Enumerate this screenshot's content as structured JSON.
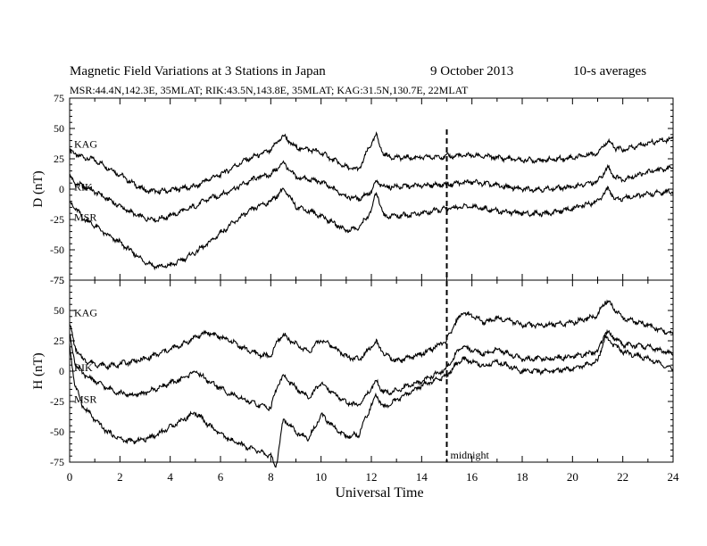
{
  "title": {
    "main": "Magnetic Field Variations at 3 Stations in Japan",
    "date": "9   October 2013",
    "averaging": "10-s averages"
  },
  "subtitle": "MSR:44.4N,142.3E, 35MLAT;  RIK:43.5N,143.8E, 35MLAT;  KAG:31.5N,130.7E, 22MLAT",
  "x_axis": {
    "label": "Universal Time",
    "range": [
      0,
      24
    ],
    "ticks": [
      0,
      2,
      4,
      6,
      8,
      10,
      12,
      14,
      16,
      18,
      20,
      22,
      24
    ]
  },
  "midnight_marker": {
    "x": 15,
    "label": "midnight"
  },
  "chart_data": [
    {
      "type": "line",
      "ylabel": "D (nT)",
      "ylim": [
        -75,
        75
      ],
      "yticks": [
        -75,
        -50,
        -25,
        0,
        25,
        50,
        75
      ],
      "series": [
        {
          "name": "KAG",
          "label_y": 37,
          "points": [
            [
              0,
              32
            ],
            [
              0.3,
              28
            ],
            [
              0.6,
              26
            ],
            [
              1,
              24
            ],
            [
              1.5,
              18
            ],
            [
              2,
              12
            ],
            [
              2.5,
              5
            ],
            [
              3,
              -1
            ],
            [
              3.5,
              -2
            ],
            [
              4,
              -1
            ],
            [
              4.5,
              1
            ],
            [
              5,
              2
            ],
            [
              5.5,
              8
            ],
            [
              6,
              12
            ],
            [
              6.5,
              18
            ],
            [
              7,
              24
            ],
            [
              7.5,
              28
            ],
            [
              8,
              32
            ],
            [
              8.3,
              40
            ],
            [
              8.5,
              44
            ],
            [
              8.8,
              38
            ],
            [
              9,
              34
            ],
            [
              9.5,
              33
            ],
            [
              10,
              30
            ],
            [
              10.5,
              24
            ],
            [
              11,
              18
            ],
            [
              11.5,
              16
            ],
            [
              12,
              38
            ],
            [
              12.2,
              44
            ],
            [
              12.5,
              28
            ],
            [
              13,
              26
            ],
            [
              14,
              26
            ],
            [
              15,
              27
            ],
            [
              16,
              28
            ],
            [
              17,
              26
            ],
            [
              18,
              24
            ],
            [
              19,
              24
            ],
            [
              20,
              26
            ],
            [
              21,
              30
            ],
            [
              21.4,
              40
            ],
            [
              21.7,
              34
            ],
            [
              22,
              32
            ],
            [
              23,
              38
            ],
            [
              24,
              42
            ]
          ]
        },
        {
          "name": "RIK",
          "label_y": 2,
          "points": [
            [
              0,
              10
            ],
            [
              0.3,
              4
            ],
            [
              0.6,
              2
            ],
            [
              1,
              -2
            ],
            [
              1.5,
              -8
            ],
            [
              2,
              -14
            ],
            [
              2.5,
              -20
            ],
            [
              3,
              -24
            ],
            [
              3.5,
              -25
            ],
            [
              4,
              -22
            ],
            [
              4.5,
              -18
            ],
            [
              5,
              -14
            ],
            [
              5.5,
              -8
            ],
            [
              6,
              -5
            ],
            [
              6.5,
              0
            ],
            [
              7,
              5
            ],
            [
              7.5,
              10
            ],
            [
              8,
              12
            ],
            [
              8.3,
              18
            ],
            [
              8.5,
              22
            ],
            [
              8.8,
              14
            ],
            [
              9,
              10
            ],
            [
              9.5,
              8
            ],
            [
              10,
              6
            ],
            [
              10.5,
              0
            ],
            [
              11,
              -6
            ],
            [
              11.5,
              -8
            ],
            [
              12,
              -2
            ],
            [
              12.2,
              6
            ],
            [
              12.5,
              2
            ],
            [
              13,
              2
            ],
            [
              14,
              3
            ],
            [
              15,
              4
            ],
            [
              16,
              6
            ],
            [
              17,
              3
            ],
            [
              18,
              0
            ],
            [
              19,
              0
            ],
            [
              20,
              2
            ],
            [
              21,
              6
            ],
            [
              21.4,
              18
            ],
            [
              21.7,
              10
            ],
            [
              22,
              8
            ],
            [
              23,
              14
            ],
            [
              24,
              18
            ]
          ]
        },
        {
          "name": "MSR",
          "label_y": -23,
          "points": [
            [
              0,
              -10
            ],
            [
              0.3,
              -18
            ],
            [
              0.6,
              -25
            ],
            [
              1,
              -30
            ],
            [
              1.5,
              -38
            ],
            [
              2,
              -44
            ],
            [
              2.5,
              -52
            ],
            [
              3,
              -60
            ],
            [
              3.5,
              -64
            ],
            [
              4,
              -63
            ],
            [
              4.5,
              -58
            ],
            [
              5,
              -52
            ],
            [
              5.5,
              -45
            ],
            [
              6,
              -36
            ],
            [
              6.5,
              -28
            ],
            [
              7,
              -20
            ],
            [
              7.5,
              -14
            ],
            [
              8,
              -10
            ],
            [
              8.3,
              -4
            ],
            [
              8.5,
              0
            ],
            [
              8.8,
              -8
            ],
            [
              9,
              -14
            ],
            [
              9.5,
              -18
            ],
            [
              10,
              -22
            ],
            [
              10.5,
              -28
            ],
            [
              11,
              -34
            ],
            [
              11.5,
              -32
            ],
            [
              12,
              -18
            ],
            [
              12.2,
              -2
            ],
            [
              12.5,
              -22
            ],
            [
              13,
              -22
            ],
            [
              14,
              -20
            ],
            [
              15,
              -16
            ],
            [
              16,
              -14
            ],
            [
              17,
              -18
            ],
            [
              18,
              -20
            ],
            [
              19,
              -20
            ],
            [
              20,
              -16
            ],
            [
              21,
              -10
            ],
            [
              21.4,
              0
            ],
            [
              21.7,
              -8
            ],
            [
              22,
              -8
            ],
            [
              23,
              -4
            ],
            [
              24,
              -2
            ]
          ]
        }
      ]
    },
    {
      "type": "line",
      "ylabel": "H (nT)",
      "ylim": [
        -75,
        75
      ],
      "yticks": [
        -75,
        -50,
        -25,
        0,
        25,
        50,
        75
      ],
      "series": [
        {
          "name": "KAG",
          "label_y": 48,
          "points": [
            [
              0,
              40
            ],
            [
              0.2,
              20
            ],
            [
              0.5,
              10
            ],
            [
              1,
              6
            ],
            [
              1.5,
              4
            ],
            [
              2,
              6
            ],
            [
              2.5,
              8
            ],
            [
              3,
              10
            ],
            [
              3.5,
              14
            ],
            [
              4,
              18
            ],
            [
              4.5,
              22
            ],
            [
              5,
              28
            ],
            [
              5.5,
              32
            ],
            [
              6,
              28
            ],
            [
              6.5,
              24
            ],
            [
              7,
              18
            ],
            [
              7.5,
              14
            ],
            [
              8,
              12
            ],
            [
              8.3,
              26
            ],
            [
              8.5,
              30
            ],
            [
              9,
              22
            ],
            [
              9.5,
              16
            ],
            [
              10,
              26
            ],
            [
              10.5,
              20
            ],
            [
              11,
              12
            ],
            [
              11.5,
              10
            ],
            [
              12,
              20
            ],
            [
              12.2,
              24
            ],
            [
              12.5,
              14
            ],
            [
              13,
              8
            ],
            [
              14,
              14
            ],
            [
              15,
              25
            ],
            [
              15.3,
              38
            ],
            [
              15.6,
              48
            ],
            [
              16,
              46
            ],
            [
              16.5,
              40
            ],
            [
              17,
              44
            ],
            [
              17.5,
              42
            ],
            [
              18,
              38
            ],
            [
              19,
              38
            ],
            [
              20,
              40
            ],
            [
              21,
              46
            ],
            [
              21.3,
              58
            ],
            [
              21.5,
              55
            ],
            [
              22,
              44
            ],
            [
              23,
              38
            ],
            [
              24,
              30
            ]
          ]
        },
        {
          "name": "RIK",
          "label_y": 3,
          "points": [
            [
              0,
              30
            ],
            [
              0.2,
              8
            ],
            [
              0.5,
              -2
            ],
            [
              1,
              -8
            ],
            [
              1.5,
              -14
            ],
            [
              2,
              -18
            ],
            [
              2.5,
              -20
            ],
            [
              3,
              -18
            ],
            [
              3.5,
              -14
            ],
            [
              4,
              -10
            ],
            [
              4.5,
              -6
            ],
            [
              5,
              0
            ],
            [
              5.5,
              -8
            ],
            [
              6,
              -14
            ],
            [
              6.5,
              -20
            ],
            [
              7,
              -24
            ],
            [
              7.5,
              -28
            ],
            [
              8,
              -30
            ],
            [
              8.3,
              -10
            ],
            [
              8.5,
              -4
            ],
            [
              9,
              -14
            ],
            [
              9.5,
              -22
            ],
            [
              10,
              -10
            ],
            [
              10.5,
              -18
            ],
            [
              11,
              -26
            ],
            [
              11.5,
              -28
            ],
            [
              12,
              -14
            ],
            [
              12.2,
              -8
            ],
            [
              12.5,
              -18
            ],
            [
              13,
              -16
            ],
            [
              14,
              -8
            ],
            [
              15,
              2
            ],
            [
              15.3,
              12
            ],
            [
              15.6,
              20
            ],
            [
              16,
              18
            ],
            [
              16.5,
              14
            ],
            [
              17,
              18
            ],
            [
              17.5,
              14
            ],
            [
              18,
              10
            ],
            [
              19,
              10
            ],
            [
              20,
              12
            ],
            [
              21,
              16
            ],
            [
              21.3,
              32
            ],
            [
              21.5,
              30
            ],
            [
              22,
              22
            ],
            [
              23,
              20
            ],
            [
              24,
              14
            ]
          ]
        },
        {
          "name": "MSR",
          "label_y": -23,
          "points": [
            [
              0,
              20
            ],
            [
              0.2,
              -10
            ],
            [
              0.5,
              -28
            ],
            [
              1,
              -40
            ],
            [
              1.5,
              -50
            ],
            [
              2,
              -56
            ],
            [
              2.5,
              -58
            ],
            [
              3,
              -56
            ],
            [
              3.5,
              -52
            ],
            [
              4,
              -46
            ],
            [
              4.5,
              -40
            ],
            [
              5,
              -34
            ],
            [
              5.5,
              -44
            ],
            [
              6,
              -52
            ],
            [
              6.5,
              -58
            ],
            [
              7,
              -62
            ],
            [
              7.5,
              -66
            ],
            [
              8,
              -70
            ],
            [
              8.2,
              -80
            ],
            [
              8.5,
              -40
            ],
            [
              9,
              -50
            ],
            [
              9.5,
              -56
            ],
            [
              10,
              -36
            ],
            [
              10.5,
              -46
            ],
            [
              11,
              -54
            ],
            [
              11.5,
              -52
            ],
            [
              12,
              -28
            ],
            [
              12.2,
              -20
            ],
            [
              12.5,
              -30
            ],
            [
              13,
              -24
            ],
            [
              14,
              -12
            ],
            [
              15,
              -4
            ],
            [
              15.3,
              4
            ],
            [
              15.6,
              10
            ],
            [
              16,
              8
            ],
            [
              16.5,
              4
            ],
            [
              17,
              8
            ],
            [
              17.5,
              4
            ],
            [
              18,
              0
            ],
            [
              19,
              0
            ],
            [
              20,
              2
            ],
            [
              21,
              8
            ],
            [
              21.3,
              28
            ],
            [
              21.5,
              24
            ],
            [
              22,
              16
            ],
            [
              23,
              10
            ],
            [
              24,
              2
            ]
          ]
        }
      ]
    }
  ]
}
